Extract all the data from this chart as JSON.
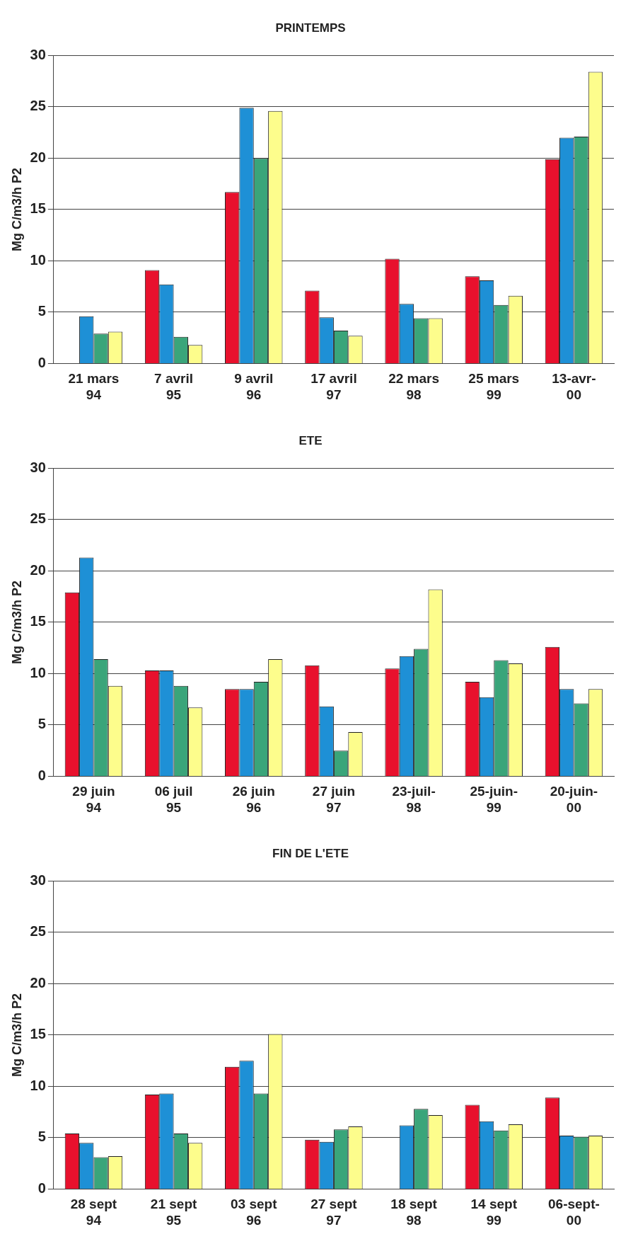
{
  "chart_data": [
    {
      "type": "bar",
      "title": "PRINTEMPS",
      "ylabel": "Mg C/m3/h P2",
      "categories": [
        "21 mars 94",
        "7 avril 95",
        "9 avril 96",
        "17 avril 97",
        "22 mars 98",
        "25 mars 99",
        "13-avr-00"
      ],
      "series": [
        {
          "color": "#e8112d",
          "values": [
            null,
            9.1,
            16.7,
            7.1,
            10.2,
            8.5,
            19.9
          ]
        },
        {
          "color": "#1e90d6",
          "values": [
            4.6,
            7.7,
            24.9,
            4.5,
            5.8,
            8.1,
            22.0
          ]
        },
        {
          "color": "#3aa57a",
          "values": [
            2.9,
            2.6,
            20.0,
            3.2,
            4.4,
            5.7,
            22.1
          ]
        },
        {
          "color": "#fdfd8c",
          "values": [
            3.1,
            1.8,
            24.6,
            2.7,
            4.4,
            6.6,
            28.4
          ]
        }
      ],
      "ylim": [
        0,
        30
      ],
      "yticks": [
        0,
        5,
        10,
        15,
        20,
        25,
        30
      ],
      "grid": "y",
      "legend": false
    },
    {
      "type": "bar",
      "title": "ETE",
      "ylabel": "Mg C/m3/h P2",
      "categories": [
        "29 juin 94",
        "06 juil 95",
        "26 juin 96",
        "27 juin 97",
        "23-juil-98",
        "25-juin-99",
        "20-juin-00"
      ],
      "series": [
        {
          "color": "#e8112d",
          "values": [
            17.9,
            10.3,
            8.5,
            10.8,
            10.5,
            9.2,
            12.6
          ]
        },
        {
          "color": "#1e90d6",
          "values": [
            21.3,
            10.3,
            8.5,
            6.8,
            11.7,
            7.7,
            8.5
          ]
        },
        {
          "color": "#3aa57a",
          "values": [
            11.4,
            8.8,
            9.2,
            2.5,
            12.4,
            11.3,
            7.1
          ]
        },
        {
          "color": "#fdfd8c",
          "values": [
            8.8,
            6.7,
            11.4,
            4.3,
            18.2,
            11.0,
            8.5
          ]
        }
      ],
      "ylim": [
        0,
        30
      ],
      "yticks": [
        0,
        5,
        10,
        15,
        20,
        25,
        30
      ],
      "grid": "y",
      "legend": false
    },
    {
      "type": "bar",
      "title": "FIN DE L'ETE",
      "ylabel": "Mg C/m3/h P2",
      "categories": [
        "28 sept 94",
        "21 sept 95",
        "03 sept 96",
        "27 sept 97",
        "18 sept 98",
        "14 sept 99",
        "06-sept-00"
      ],
      "series": [
        {
          "color": "#e8112d",
          "values": [
            5.4,
            9.2,
            11.9,
            4.8,
            null,
            8.2,
            8.9
          ]
        },
        {
          "color": "#1e90d6",
          "values": [
            4.5,
            9.3,
            12.5,
            4.6,
            6.2,
            6.6,
            5.2
          ]
        },
        {
          "color": "#3aa57a",
          "values": [
            3.1,
            5.4,
            9.3,
            5.8,
            7.8,
            5.7,
            5.1
          ]
        },
        {
          "color": "#fdfd8c",
          "values": [
            3.2,
            4.5,
            15.1,
            6.1,
            7.2,
            6.3,
            5.2
          ]
        }
      ],
      "ylim": [
        0,
        30
      ],
      "yticks": [
        0,
        5,
        10,
        15,
        20,
        25,
        30
      ],
      "grid": "y",
      "legend": false
    }
  ]
}
